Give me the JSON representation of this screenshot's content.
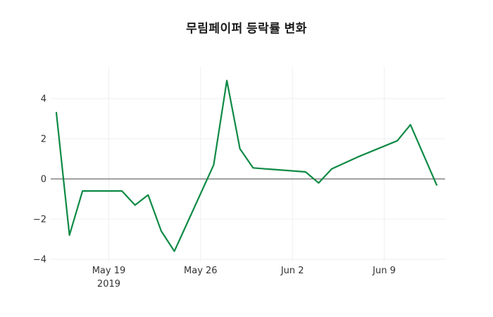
{
  "chart_data": {
    "type": "line",
    "title": "무림페이퍼 등락률 변화",
    "xlabel": "",
    "ylabel": "",
    "ylim": [
      -4.2,
      5.4
    ],
    "x_range": [
      "2019-05-15",
      "2019-06-13"
    ],
    "grid": true,
    "zeroline": true,
    "background_color": "#ffffff",
    "gridline_color": "#efefef",
    "zeroline_color": "#444444",
    "tick_color": "#333333",
    "series": [
      {
        "color": "#0e8a45",
        "points": [
          {
            "date": "2019-05-15",
            "value": 3.3
          },
          {
            "date": "2019-05-16",
            "value": -2.8
          },
          {
            "date": "2019-05-17",
            "value": -0.6
          },
          {
            "date": "2019-05-20",
            "value": -0.6
          },
          {
            "date": "2019-05-21",
            "value": -1.3
          },
          {
            "date": "2019-05-22",
            "value": -0.8
          },
          {
            "date": "2019-05-23",
            "value": -2.6
          },
          {
            "date": "2019-05-24",
            "value": -3.6
          },
          {
            "date": "2019-05-27",
            "value": 0.7
          },
          {
            "date": "2019-05-28",
            "value": 4.9
          },
          {
            "date": "2019-05-29",
            "value": 1.5
          },
          {
            "date": "2019-05-30",
            "value": 0.55
          },
          {
            "date": "2019-05-31",
            "value": 0.5
          },
          {
            "date": "2019-06-03",
            "value": 0.35
          },
          {
            "date": "2019-06-04",
            "value": -0.2
          },
          {
            "date": "2019-06-05",
            "value": 0.5
          },
          {
            "date": "2019-06-07",
            "value": 1.1
          },
          {
            "date": "2019-06-10",
            "value": 1.9
          },
          {
            "date": "2019-06-11",
            "value": 2.7
          },
          {
            "date": "2019-06-12",
            "value": 1.2
          },
          {
            "date": "2019-06-13",
            "value": -0.3
          }
        ]
      }
    ],
    "yticks": [
      {
        "label": "−4",
        "value": -4
      },
      {
        "label": "−2",
        "value": -2
      },
      {
        "label": "0",
        "value": 0
      },
      {
        "label": "2",
        "value": 2
      },
      {
        "label": "4",
        "value": 4
      }
    ],
    "xticks": [
      {
        "label": "May 19",
        "sublabel": "2019",
        "date": "2019-05-19"
      },
      {
        "label": "May 26",
        "date": "2019-05-26"
      },
      {
        "label": "Jun 2",
        "date": "2019-06-02"
      },
      {
        "label": "Jun 9",
        "date": "2019-06-09"
      }
    ]
  }
}
